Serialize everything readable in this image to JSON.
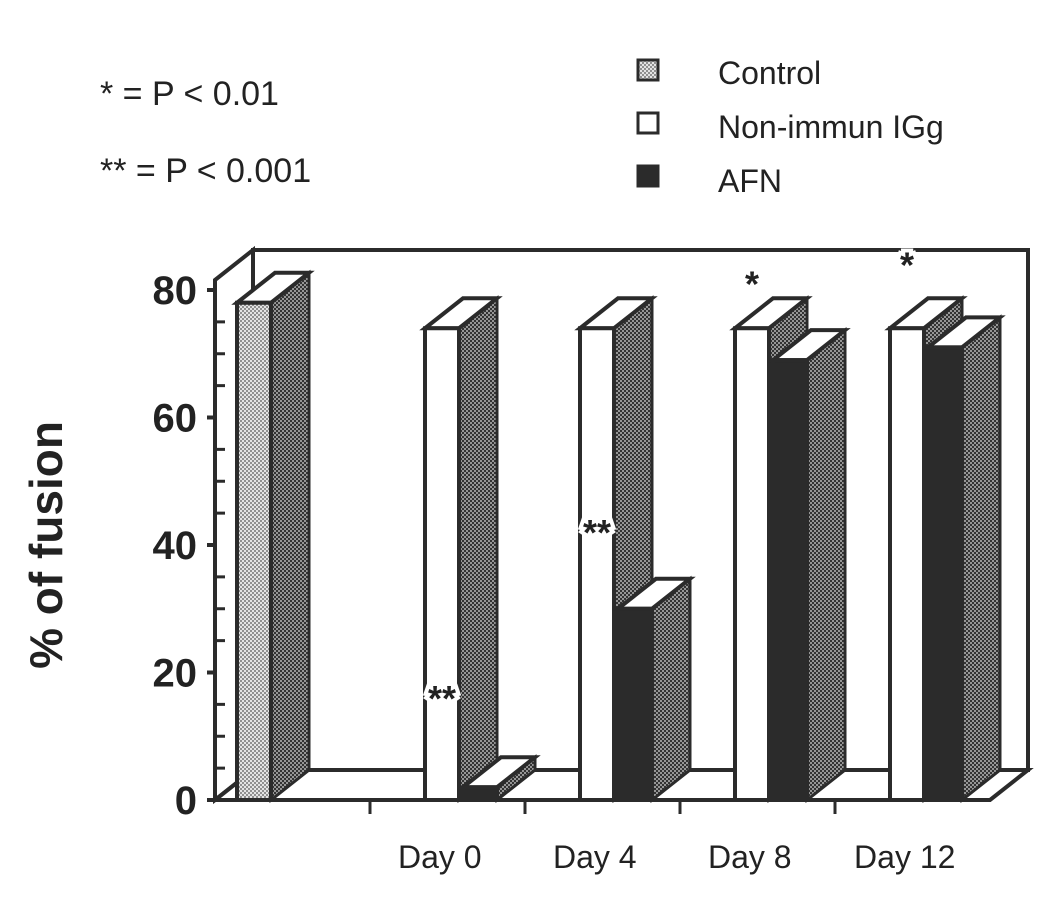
{
  "chart_data": {
    "type": "bar",
    "style": "3d-grouped",
    "categories": [
      "",
      "Day 0",
      "Day 4",
      "Day 8",
      "Day 12"
    ],
    "series": [
      {
        "name": "Control",
        "values": [
          78,
          null,
          null,
          null,
          null
        ],
        "pattern": "light-dotted"
      },
      {
        "name": "Non-immun IGg",
        "values": [
          null,
          74,
          74,
          74,
          74
        ],
        "pattern": "white"
      },
      {
        "name": "AFN",
        "values": [
          null,
          2,
          30,
          69,
          71
        ],
        "pattern": "dark"
      }
    ],
    "ylabel": "% of fusion",
    "xlabel": "",
    "ylim": [
      0,
      80
    ],
    "yticks": [
      "0",
      "20",
      "40",
      "60",
      "80"
    ],
    "legend_placement": "top-right",
    "significance_note": [
      "* = P < 0.01",
      "** = P < 0.001"
    ],
    "annotations": [
      {
        "category": "Day 0",
        "text": "**",
        "y": 14
      },
      {
        "category": "Day 4",
        "text": "**",
        "y": 40
      },
      {
        "category": "Day 8",
        "text": "*",
        "y": 79
      },
      {
        "category": "Day 12",
        "text": "*",
        "y": 82
      }
    ],
    "colors": {
      "ink": "#2b2b2b",
      "paper": "#ffffff",
      "light": "#bdbdbd"
    }
  }
}
